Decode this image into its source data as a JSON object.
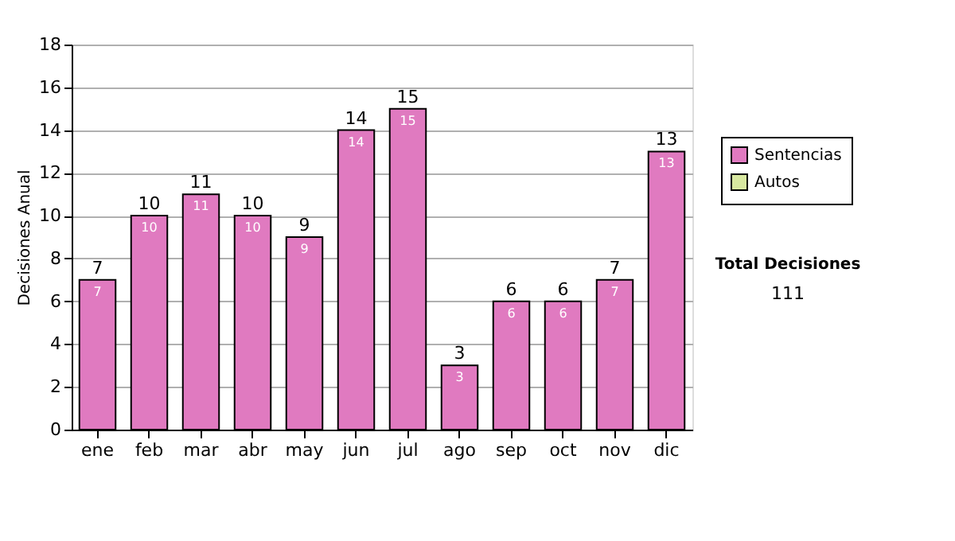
{
  "chart_data": {
    "type": "bar",
    "ylabel": "Decisiones Anual",
    "categories": [
      "ene",
      "feb",
      "mar",
      "abr",
      "may",
      "jun",
      "jul",
      "ago",
      "sep",
      "oct",
      "nov",
      "dic"
    ],
    "series": [
      {
        "name": "Sentencias",
        "color": "#e07ac0",
        "values": [
          7,
          10,
          11,
          10,
          9,
          14,
          15,
          3,
          6,
          6,
          7,
          13
        ]
      },
      {
        "name": "Autos",
        "color": "#d8e8a0",
        "values": [
          null,
          null,
          null,
          null,
          null,
          null,
          null,
          null,
          null,
          null,
          null,
          null
        ]
      }
    ],
    "ylim": [
      0,
      18
    ],
    "yticks": [
      0,
      2,
      4,
      6,
      8,
      10,
      12,
      14,
      16,
      18
    ],
    "totals": [
      "7",
      "10",
      "11",
      "10",
      "9",
      "14",
      "15",
      "3",
      "6",
      "6",
      "7",
      "13"
    ],
    "grid": "y",
    "legend": "top right",
    "data_labels": true,
    "annotations": [
      "Total Decisiones",
      "111"
    ]
  }
}
